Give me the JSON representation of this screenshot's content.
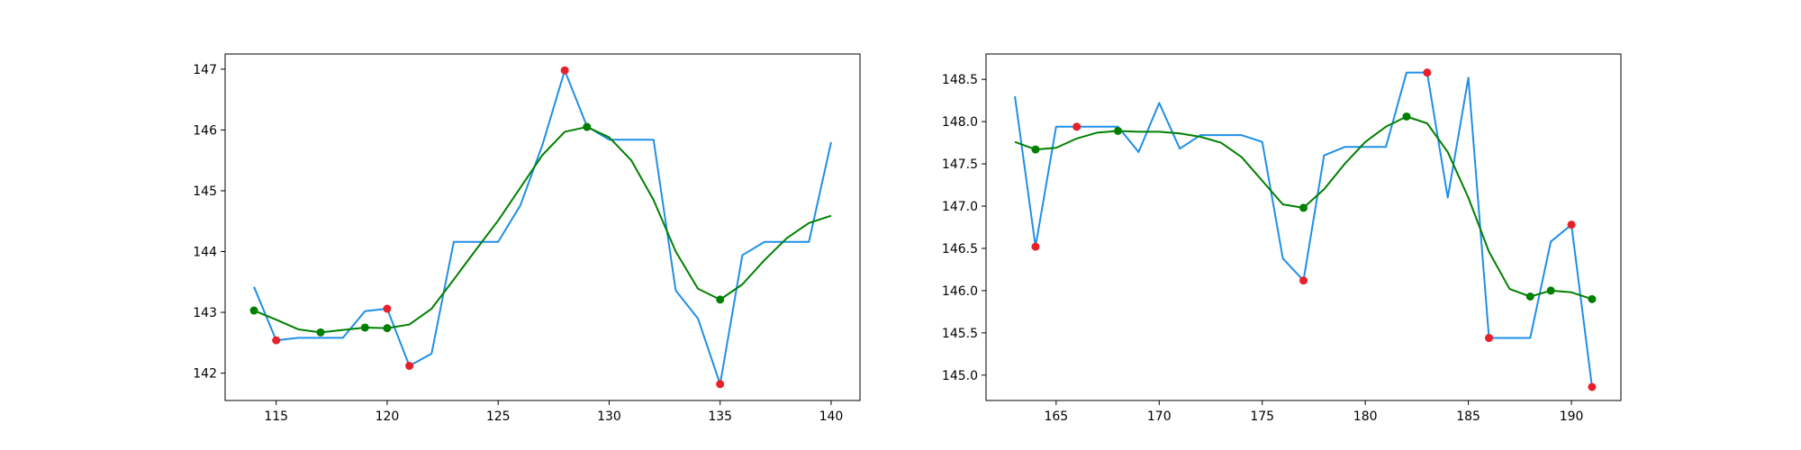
{
  "chart_data": [
    {
      "type": "line",
      "title": "",
      "xlabel": "",
      "ylabel": "",
      "xlim": [
        112.7,
        141.3
      ],
      "ylim": [
        141.55,
        147.25
      ],
      "xticks": [
        115,
        120,
        125,
        130,
        135,
        140
      ],
      "yticks": [
        142,
        143,
        144,
        145,
        146,
        147
      ],
      "grid": false,
      "series": [
        {
          "color": "#1f8fe6",
          "style": "line",
          "x": [
            114,
            115,
            116,
            117,
            118,
            119,
            120,
            121,
            122,
            123,
            124,
            125,
            126,
            127,
            128,
            129,
            130,
            131,
            132,
            133,
            134,
            135,
            136,
            137,
            138,
            139,
            140
          ],
          "y": [
            143.42,
            142.54,
            142.58,
            142.58,
            142.58,
            143.02,
            143.06,
            142.12,
            142.32,
            144.16,
            144.16,
            144.16,
            144.76,
            145.76,
            146.98,
            146.06,
            145.84,
            145.84,
            145.84,
            143.36,
            142.9,
            141.82,
            143.94,
            144.16,
            144.16,
            144.16,
            145.8
          ]
        },
        {
          "color": "#008000",
          "style": "line",
          "x": [
            114,
            115,
            116,
            117,
            118,
            119,
            120,
            121,
            122,
            123,
            124,
            125,
            126,
            127,
            128,
            129,
            130,
            131,
            132,
            133,
            134,
            135,
            136,
            137,
            138,
            139,
            140
          ],
          "y": [
            143.03,
            142.88,
            142.72,
            142.67,
            142.71,
            142.75,
            142.74,
            142.8,
            143.06,
            143.54,
            144.03,
            144.51,
            145.05,
            145.59,
            145.97,
            146.05,
            145.88,
            145.5,
            144.85,
            144.0,
            143.39,
            143.21,
            143.46,
            143.86,
            144.22,
            144.47,
            144.59
          ]
        },
        {
          "color": "#e8202a",
          "style": "markers",
          "x": [
            115,
            120,
            121,
            128,
            135
          ],
          "y": [
            142.54,
            143.06,
            142.12,
            146.98,
            141.82
          ]
        },
        {
          "color": "#008000",
          "style": "markers",
          "x": [
            114,
            117,
            119,
            120,
            129,
            135
          ],
          "y": [
            143.03,
            142.67,
            142.75,
            142.74,
            146.05,
            143.21
          ]
        }
      ]
    },
    {
      "type": "line",
      "title": "",
      "xlabel": "",
      "ylabel": "",
      "xlim": [
        161.6,
        192.4
      ],
      "ylim": [
        144.7,
        148.8
      ],
      "xticks": [
        165,
        170,
        175,
        180,
        185,
        190
      ],
      "yticks": [
        145.0,
        145.5,
        146.0,
        146.5,
        147.0,
        147.5,
        148.0,
        148.5
      ],
      "grid": false,
      "series": [
        {
          "color": "#1f8fe6",
          "style": "line",
          "x": [
            163,
            164,
            165,
            166,
            167,
            168,
            169,
            170,
            171,
            172,
            173,
            174,
            175,
            176,
            177,
            178,
            179,
            180,
            181,
            182,
            183,
            184,
            185,
            186,
            187,
            188,
            189,
            190,
            191
          ],
          "y": [
            148.3,
            146.52,
            147.94,
            147.94,
            147.94,
            147.94,
            147.64,
            148.22,
            147.68,
            147.84,
            147.84,
            147.84,
            147.76,
            146.38,
            146.12,
            147.6,
            147.7,
            147.7,
            147.7,
            148.58,
            148.58,
            147.1,
            148.52,
            145.44,
            145.44,
            145.44,
            146.58,
            146.78,
            144.86
          ]
        },
        {
          "color": "#008000",
          "style": "line",
          "x": [
            163,
            164,
            165,
            166,
            167,
            168,
            169,
            170,
            171,
            172,
            173,
            174,
            175,
            176,
            177,
            178,
            179,
            180,
            181,
            182,
            183,
            184,
            185,
            186,
            187,
            188,
            189,
            190,
            191
          ],
          "y": [
            147.76,
            147.67,
            147.69,
            147.8,
            147.87,
            147.89,
            147.88,
            147.88,
            147.86,
            147.82,
            147.75,
            147.58,
            147.3,
            147.02,
            146.98,
            147.2,
            147.5,
            147.76,
            147.94,
            148.06,
            147.98,
            147.64,
            147.1,
            146.46,
            146.02,
            145.93,
            146.0,
            145.98,
            145.9
          ]
        },
        {
          "color": "#e8202a",
          "style": "markers",
          "x": [
            164,
            166,
            177,
            183,
            186,
            190,
            191
          ],
          "y": [
            146.52,
            147.94,
            146.12,
            148.58,
            145.44,
            146.78,
            144.86
          ]
        },
        {
          "color": "#008000",
          "style": "markers",
          "x": [
            164,
            168,
            177,
            182,
            188,
            189,
            191
          ],
          "y": [
            147.67,
            147.89,
            146.98,
            148.06,
            145.93,
            146.0,
            145.9
          ]
        }
      ]
    }
  ]
}
